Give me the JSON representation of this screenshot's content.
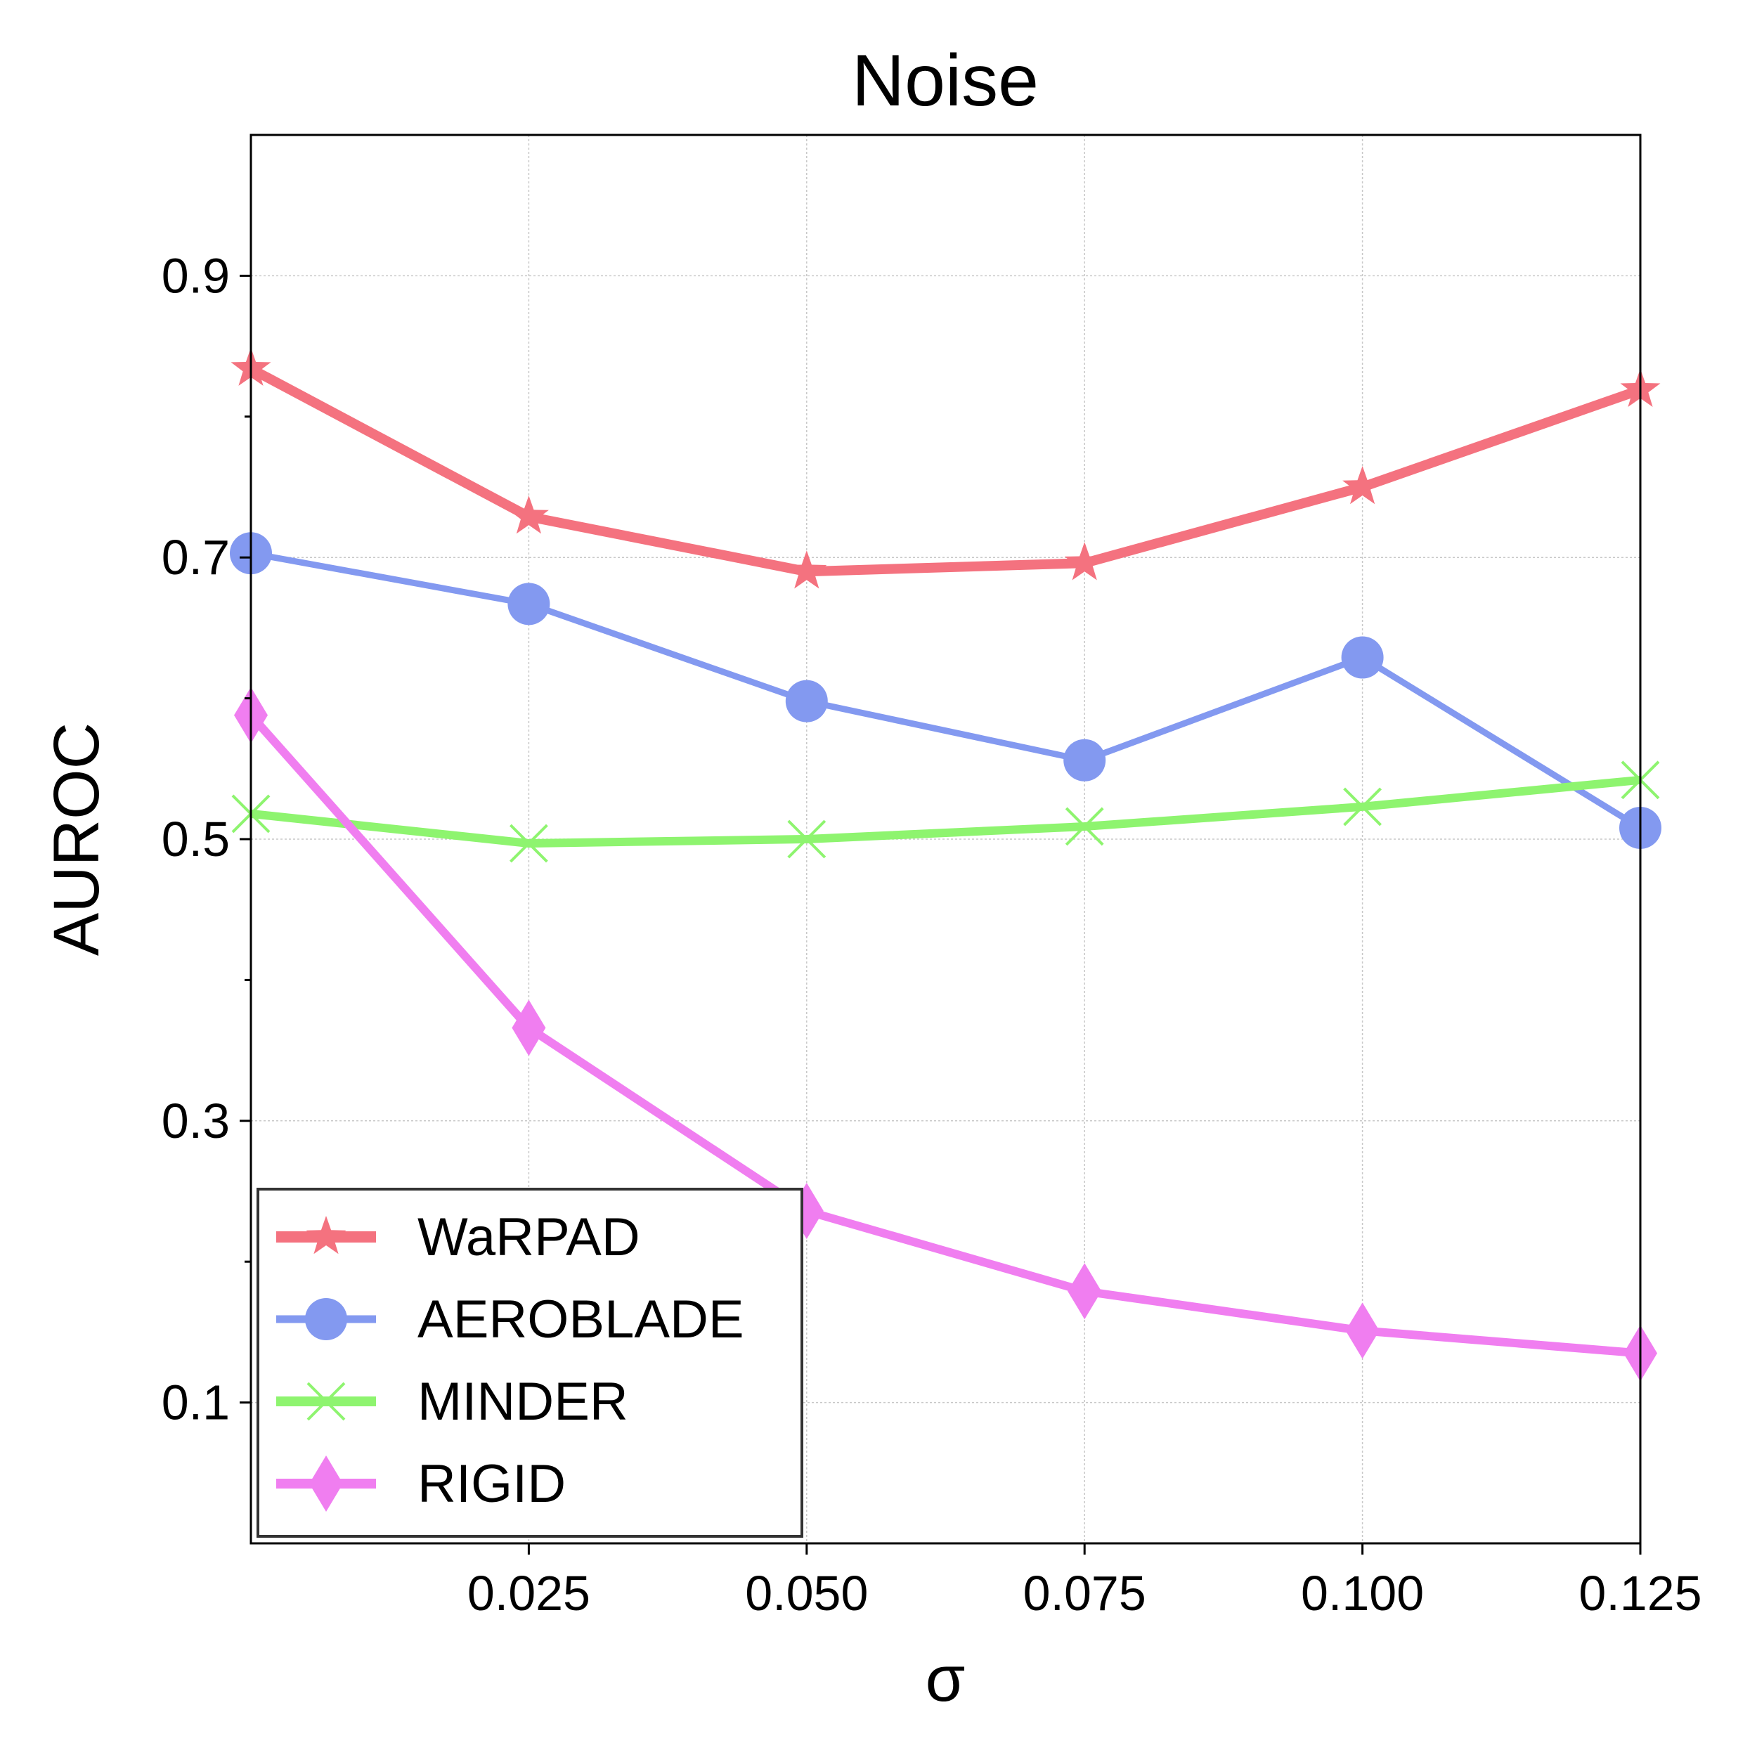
{
  "chart_data": {
    "type": "line",
    "title": "Noise",
    "xlabel": "σ",
    "ylabel": "AUROC",
    "xlim": [
      0.0,
      0.125
    ],
    "ylim": [
      0.0,
      1.0
    ],
    "grid": true,
    "legend_position": "lower-left",
    "x": [
      0.0,
      0.025,
      0.05,
      0.075,
      0.1,
      0.125
    ],
    "x_ticks": [
      0.025,
      0.05,
      0.075,
      0.1,
      0.125
    ],
    "x_tick_labels": [
      "0.025",
      "0.050",
      "0.075",
      "0.100",
      "0.125"
    ],
    "y_ticks": [
      0.1,
      0.3,
      0.5,
      0.7,
      0.9
    ],
    "y_tick_labels": [
      "0.1",
      "0.3",
      "0.5",
      "0.7",
      "0.9"
    ],
    "y_minor_ticks": [
      0.2,
      0.4,
      0.6,
      0.8
    ],
    "series": [
      {
        "name": "WaRPAD",
        "values": [
          0.834,
          0.729,
          0.69,
          0.696,
          0.75,
          0.819
        ],
        "color": "#f4727f",
        "marker": "star"
      },
      {
        "name": "AEROBLADE",
        "values": [
          0.703,
          0.667,
          0.598,
          0.556,
          0.629,
          0.508
        ],
        "color": "#8399f0",
        "marker": "circle"
      },
      {
        "name": "MINDER",
        "values": [
          0.518,
          0.497,
          0.5,
          0.509,
          0.523,
          0.542
        ],
        "color": "#8ef46f",
        "marker": "x"
      },
      {
        "name": "RIGID",
        "values": [
          0.588,
          0.366,
          0.236,
          0.179,
          0.151,
          0.135
        ],
        "color": "#f07ef0",
        "marker": "diamond"
      }
    ]
  }
}
